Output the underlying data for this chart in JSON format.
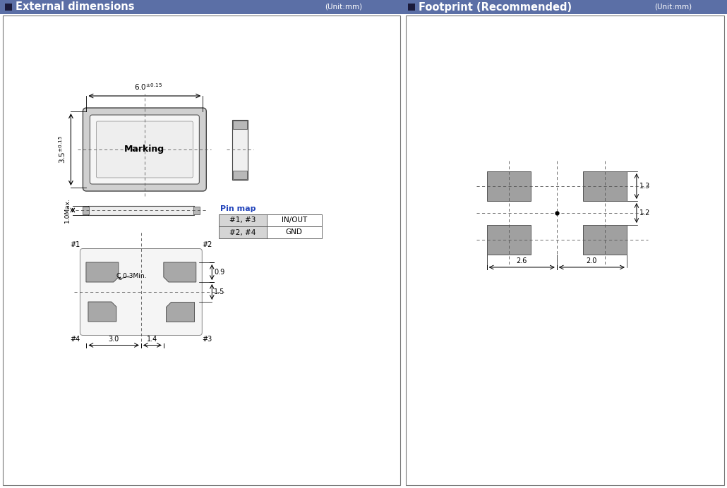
{
  "fig_width": 10.3,
  "fig_height": 6.92,
  "bg_color": "#ffffff",
  "header_bg": "#5b6fa6",
  "header_text_color": "#ffffff",
  "header_title_left": "External dimensions",
  "header_unit_left": "(Unit:mm)",
  "header_title_right": "Footprint (Recommended)",
  "header_unit_right": "(Unit:mm)",
  "pad_color": "#a8a8a8",
  "body_outer_color": "#d8d8d8",
  "body_inner_color": "#f2f2f2",
  "dashed_color": "#555555",
  "pin_map_header_color": "#2244bb"
}
